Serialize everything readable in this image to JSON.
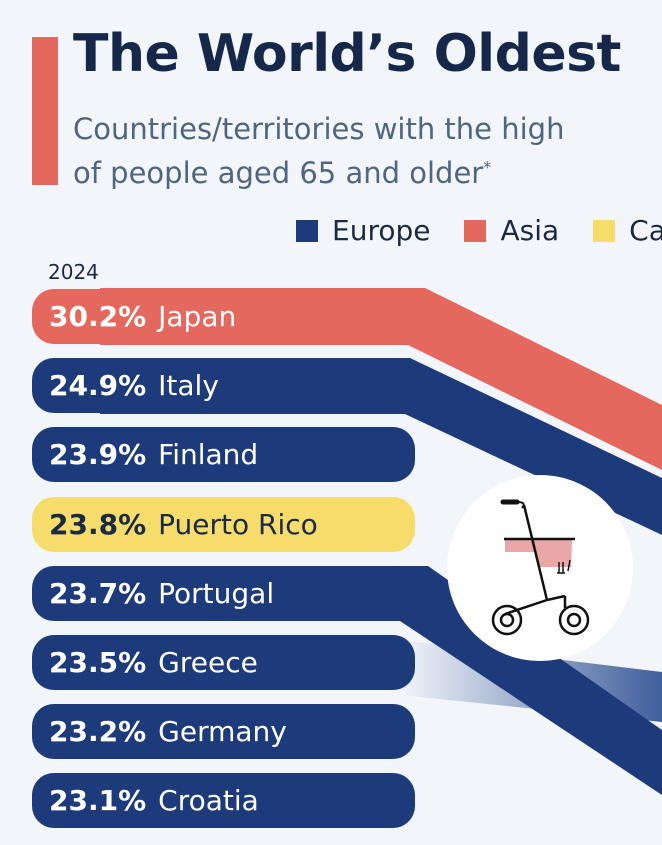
{
  "header": {
    "title": "The World’s Oldest",
    "subtitle_line1": "Countries/territories with the high",
    "subtitle_line2": "of people aged 65 and older",
    "subtitle_mark": "*"
  },
  "legend": [
    {
      "label": "Europe",
      "color": "#1d3a7b"
    },
    {
      "label": "Asia",
      "color": "#e5685f"
    },
    {
      "label": "Ca",
      "color": "#f6dd6b"
    }
  ],
  "icon": "rollator-walker-icon",
  "chart_data": {
    "type": "bar",
    "title": "The World’s Oldest",
    "period_label": "2024",
    "categories": [
      "Japan",
      "Italy",
      "Finland",
      "Puerto Rico",
      "Portugal",
      "Greece",
      "Germany",
      "Croatia"
    ],
    "value_labels": [
      "30.2%",
      "24.9%",
      "23.9%",
      "23.8%",
      "23.7%",
      "23.5%",
      "23.2%",
      "23.1%"
    ],
    "values": [
      30.2,
      24.9,
      23.9,
      23.8,
      23.7,
      23.5,
      23.2,
      23.1
    ],
    "regions": [
      "Asia",
      "Europe",
      "Europe",
      "Ca",
      "Europe",
      "Europe",
      "Europe",
      "Europe"
    ],
    "unit": "%"
  }
}
